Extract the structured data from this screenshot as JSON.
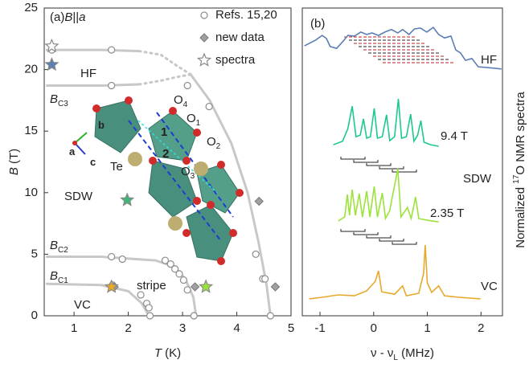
{
  "chart_data": [
    {
      "type": "scatter",
      "title_parts": [
        "(a)",
        "B",
        "||",
        "a"
      ],
      "xlabel_parts": [
        "T",
        " (K)"
      ],
      "ylabel_parts": [
        "B",
        " (T)"
      ],
      "xlim": [
        0.45,
        5
      ],
      "xticks": [
        1,
        2,
        3,
        4,
        5
      ],
      "ylim": [
        0,
        25
      ],
      "yticks": [
        0,
        5,
        10,
        15,
        20,
        25
      ],
      "legend": "upper right",
      "series": [
        {
          "name": "Refs. 15,20",
          "marker": "circle",
          "color": "#8c8c8c",
          "x": [
            0.59,
            1.69,
            1.69,
            3.09,
            3.49,
            4.35,
            4.48,
            4.52,
            4.62,
            1.69,
            1.89,
            2.68,
            2.78,
            2.86,
            2.94,
            3.02,
            1.71,
            2.23,
            2.34,
            2.38,
            2.4,
            3.09,
            3.21
          ],
          "y": [
            21.6,
            21.6,
            18.7,
            18.7,
            17.0,
            5.0,
            3.0,
            3.0,
            0,
            4.8,
            4.6,
            4.5,
            4.2,
            3.8,
            3.4,
            2.9,
            2.5,
            1.7,
            1.0,
            0.65,
            0,
            2.1,
            0
          ]
        },
        {
          "name": "new data",
          "marker": "diamond",
          "color": "#a0a0a0",
          "x": [
            1.74,
            3.23,
            4.41,
            4.71
          ],
          "y": [
            2.35,
            2.35,
            9.3,
            2.35
          ]
        },
        {
          "name": "spectra",
          "marker": "star",
          "color": "#9a9a9a",
          "point_colors": [
            "#ffffff",
            "#5b7fb5",
            "#3cb878",
            "#e6a92a",
            "#9be33a"
          ],
          "x": [
            0.59,
            0.59,
            1.98,
            1.69,
            3.43
          ],
          "y": [
            21.9,
            20.4,
            9.4,
            2.35,
            2.35
          ]
        }
      ],
      "boundaries": [
        {
          "x": [
            0.5,
            1.5,
            2.2
          ],
          "y": [
            21.6,
            21.6,
            21.5
          ],
          "dash": false,
          "color": "#c8c8c8"
        },
        {
          "x": [
            2.2,
            2.6,
            2.9,
            3.15
          ],
          "y": [
            21.5,
            21.2,
            20.3,
            19.6
          ],
          "dash": true,
          "color": "#c8c8c8"
        },
        {
          "x": [
            0.5,
            1.5,
            2.2
          ],
          "y": [
            18.7,
            18.7,
            18.8
          ],
          "dash": false,
          "color": "#c8c8c8"
        },
        {
          "x": [
            2.2,
            2.6,
            2.9,
            3.15
          ],
          "y": [
            18.8,
            19.1,
            19.4,
            19.6
          ],
          "dash": true,
          "color": "#c8c8c8"
        },
        {
          "x": [
            3.15,
            3.5,
            3.9,
            4.2,
            4.4,
            4.55,
            4.62
          ],
          "y": [
            19.6,
            17.5,
            14,
            10,
            6,
            2.5,
            0
          ],
          "dash": false,
          "color": "#c8c8c8"
        },
        {
          "x": [
            0.5,
            1.5,
            2.5,
            2.85,
            3.05,
            3.2,
            3.25
          ],
          "y": [
            4.8,
            4.8,
            4.5,
            4.0,
            3.0,
            1.5,
            0
          ],
          "dash": false,
          "color": "#c8c8c8"
        },
        {
          "x": [
            0.5,
            1.5,
            2.0,
            2.25,
            2.38
          ],
          "y": [
            2.6,
            2.5,
            2.0,
            1.0,
            0
          ],
          "dash": false,
          "color": "#c8c8c8"
        }
      ],
      "annotations": [
        {
          "text": "HF"
        },
        {
          "text": "SDW"
        },
        {
          "text": "stripe"
        },
        {
          "text": "VC"
        },
        {
          "text": "B",
          "sub": "C3"
        },
        {
          "text": "B",
          "sub": "C2"
        },
        {
          "text": "B",
          "sub": "C1"
        }
      ],
      "inset_labels": [
        {
          "text": "O",
          "sub": "4"
        },
        {
          "text": "O",
          "sub": "1"
        },
        {
          "text": "O",
          "sub": "2"
        },
        {
          "text": "O",
          "sub": "3"
        },
        {
          "text": "Te"
        },
        {
          "text": "a"
        },
        {
          "text": "b"
        },
        {
          "text": "c"
        },
        {
          "text": "1"
        },
        {
          "text": "2"
        }
      ]
    },
    {
      "type": "line",
      "panel_label": "(b)",
      "xlabel_parts": [
        "ν - ν",
        "L",
        " (MHz)"
      ],
      "ylabel_parts": [
        "Normalized ",
        "17",
        "O NMR spectra"
      ],
      "xlim": [
        -1.33,
        2.4
      ],
      "xticks": [
        -1,
        0,
        1,
        2
      ],
      "ylim": [
        0,
        10
      ],
      "annotations": [
        {
          "text": "SDW"
        }
      ],
      "series": [
        {
          "name": "HF",
          "color": "#5b7fb5",
          "x": [
            -1.29,
            -1.08,
            -0.96,
            -0.88,
            -0.81,
            -0.69,
            -0.58,
            -0.48,
            -0.36,
            -0.24,
            -0.13,
            -0.03,
            0.09,
            0.21,
            0.33,
            0.45,
            0.54,
            0.66,
            0.76,
            0.87,
            0.99,
            1.11,
            1.21,
            1.32,
            1.44,
            1.53,
            1.62,
            1.71,
            1.83,
            1.95,
            2.1,
            2.38
          ],
          "y": [
            8.77,
            8.96,
            9.11,
            9.01,
            8.75,
            8.69,
            8.9,
            9.11,
            9.09,
            9.22,
            9.14,
            9.19,
            9.11,
            9.22,
            9.3,
            9.19,
            9.3,
            9.14,
            9.32,
            9.35,
            9.22,
            9.37,
            9.14,
            9.03,
            9.09,
            8.64,
            8.54,
            8.3,
            8.36,
            8.09,
            8.07,
            8.02
          ]
        },
        {
          "name": "9.4 T",
          "color": "#1ec98b",
          "x": [
            -0.75,
            -0.58,
            -0.48,
            -0.4,
            -0.33,
            -0.25,
            -0.19,
            -0.13,
            -0.06,
            0.01,
            0.07,
            0.16,
            0.24,
            0.3,
            0.39,
            0.46,
            0.52,
            0.61,
            0.69,
            0.75,
            0.82,
            0.88,
            0.94,
            1.06,
            1.21
          ],
          "y": [
            5.56,
            5.67,
            6.08,
            6.81,
            5.82,
            5.87,
            6.4,
            5.77,
            5.82,
            6.74,
            5.77,
            5.82,
            6.53,
            5.69,
            5.82,
            7.05,
            5.77,
            5.82,
            6.55,
            5.67,
            5.87,
            6.34,
            5.64,
            5.56,
            5.51
          ]
        },
        {
          "name": "2.35 T",
          "color": "#9be33a",
          "x": [
            -0.66,
            -0.54,
            -0.49,
            -0.45,
            -0.4,
            -0.34,
            -0.27,
            -0.21,
            -0.13,
            -0.07,
            0.01,
            0.07,
            0.16,
            0.22,
            0.3,
            0.45,
            0.51,
            0.63,
            0.7,
            0.78,
            0.84,
            0.99,
            1.21
          ],
          "y": [
            3.08,
            3.21,
            3.94,
            3.26,
            4.1,
            3.26,
            3.97,
            3.21,
            4.05,
            3.21,
            4.2,
            3.21,
            3.99,
            3.16,
            3.42,
            4.78,
            3.21,
            3.52,
            3.16,
            3.86,
            3.16,
            3.11,
            3.05
          ]
        },
        {
          "name": "VC",
          "color": "#e6a92a",
          "x": [
            -1.2,
            -0.96,
            -0.66,
            -0.36,
            -0.13,
            0.03,
            0.09,
            0.15,
            0.39,
            0.54,
            0.61,
            0.84,
            0.93,
            0.96,
            1.0,
            1.08,
            1.21,
            1.32,
            1.59,
            1.99
          ],
          "y": [
            0.55,
            0.6,
            0.68,
            0.65,
            0.81,
            1.12,
            1.46,
            0.78,
            0.7,
            0.97,
            0.65,
            0.73,
            1.38,
            2.3,
            1.07,
            0.76,
            0.97,
            0.65,
            0.6,
            0.55
          ]
        }
      ]
    }
  ]
}
